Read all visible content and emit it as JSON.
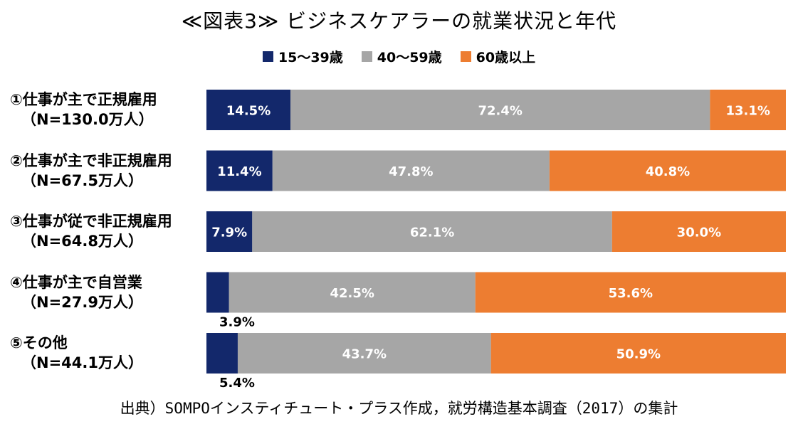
{
  "chart_data": {
    "type": "bar",
    "orientation": "horizontal",
    "stacked": true,
    "percent": true,
    "title": "≪図表3≫ ビジネスケアラーの就業状況と年代",
    "categories": [
      {
        "label": "①仕事が主で正規雇用",
        "sub": "（N=130.0万人）"
      },
      {
        "label": "②仕事が主で非正規雇用",
        "sub": "（N=67.5万人）"
      },
      {
        "label": "③仕事が従で非正規雇用",
        "sub": "（N=64.8万人）"
      },
      {
        "label": "④仕事が主で自営業",
        "sub": "（N=27.9万人）"
      },
      {
        "label": "⑤その他",
        "sub": "（N=44.1万人）"
      }
    ],
    "series": [
      {
        "name": "15～39歳",
        "color": "#13286b",
        "values": [
          14.5,
          11.4,
          7.9,
          3.9,
          5.4
        ],
        "labels": [
          "14.5%",
          "11.4%",
          "7.9%",
          "3.9%",
          "5.4%"
        ]
      },
      {
        "name": "40～59歳",
        "color": "#a6a6a6",
        "values": [
          72.4,
          47.8,
          62.1,
          42.5,
          43.7
        ],
        "labels": [
          "72.4%",
          "47.8%",
          "62.1%",
          "42.5%",
          "43.7%"
        ]
      },
      {
        "name": "60歳以上",
        "color": "#ed7d31",
        "values": [
          13.1,
          40.8,
          30.0,
          53.6,
          50.9
        ],
        "labels": [
          "13.1%",
          "40.8%",
          "30.0%",
          "53.6%",
          "50.9%"
        ]
      }
    ],
    "legend_position": "top",
    "grid": false
  },
  "source_note": "出典）SOMPOインスティチュート・プラス作成，就労構造基本調査（2017）の集計"
}
